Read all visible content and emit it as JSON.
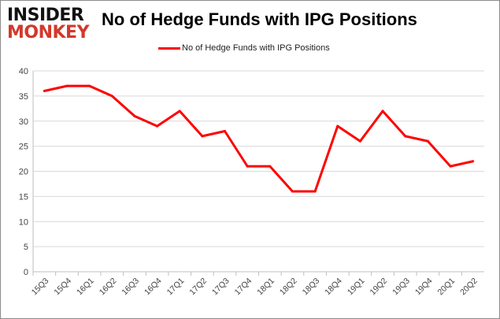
{
  "logo": {
    "line1": "INSIDER",
    "line2": "MONKEY"
  },
  "chart_data": {
    "type": "line",
    "title": "No of Hedge Funds with IPG Positions",
    "categories": [
      "15Q3",
      "15Q4",
      "16Q1",
      "16Q2",
      "16Q3",
      "16Q4",
      "17Q1",
      "17Q2",
      "17Q3",
      "17Q4",
      "18Q1",
      "18Q2",
      "18Q3",
      "18Q4",
      "19Q1",
      "19Q2",
      "19Q3",
      "19Q4",
      "20Q1",
      "20Q2"
    ],
    "series": [
      {
        "name": "No of Hedge Funds with IPG Positions",
        "color": "#ff0000",
        "values": [
          36,
          37,
          37,
          35,
          31,
          29,
          32,
          27,
          28,
          21,
          21,
          16,
          16,
          29,
          26,
          32,
          27,
          26,
          21,
          22
        ]
      }
    ],
    "ylim": [
      0,
      40
    ],
    "yticks": [
      0,
      5,
      10,
      15,
      20,
      25,
      30,
      35,
      40
    ],
    "grid": true,
    "legend": "top"
  }
}
